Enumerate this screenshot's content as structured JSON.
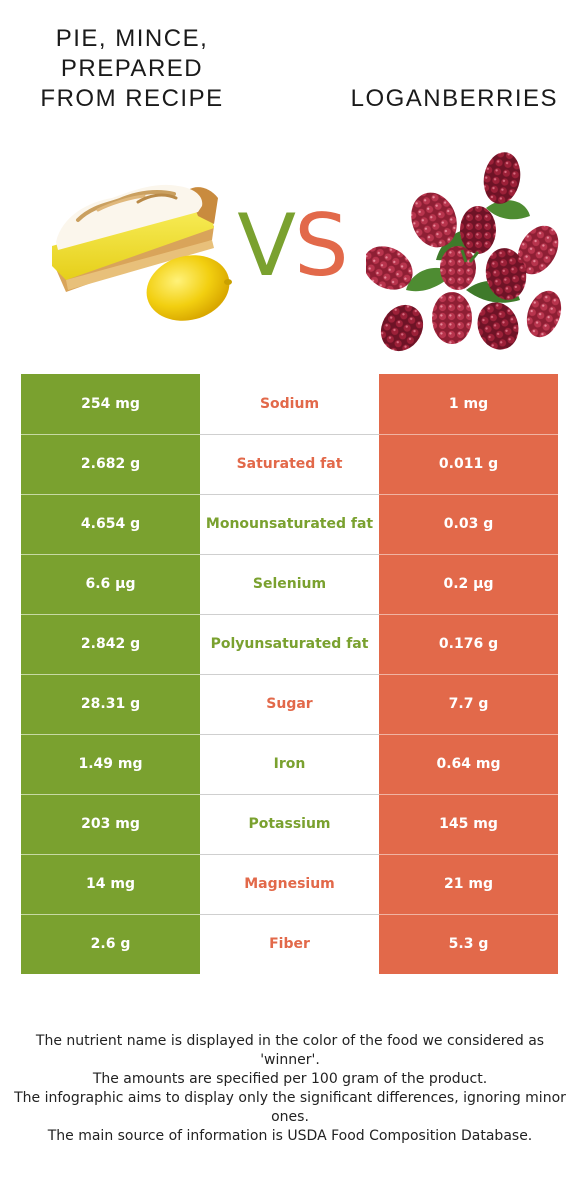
{
  "left_food": {
    "name": "Pie, mince, prepared from recipe",
    "color": "#7aa12f"
  },
  "right_food": {
    "name": "Loganberries",
    "color": "#e2694a"
  },
  "vs": {
    "v": "V",
    "s": "S"
  },
  "rows": [
    {
      "nutrient": "Sodium",
      "left": "254 mg",
      "right": "1 mg",
      "winner": "right"
    },
    {
      "nutrient": "Saturated fat",
      "left": "2.682 g",
      "right": "0.011 g",
      "winner": "right"
    },
    {
      "nutrient": "Monounsaturated fat",
      "left": "4.654 g",
      "right": "0.03 g",
      "winner": "left"
    },
    {
      "nutrient": "Selenium",
      "left": "6.6 µg",
      "right": "0.2 µg",
      "winner": "left"
    },
    {
      "nutrient": "Polyunsaturated fat",
      "left": "2.842 g",
      "right": "0.176 g",
      "winner": "left"
    },
    {
      "nutrient": "Sugar",
      "left": "28.31 g",
      "right": "7.7 g",
      "winner": "right"
    },
    {
      "nutrient": "Iron",
      "left": "1.49 mg",
      "right": "0.64 mg",
      "winner": "left"
    },
    {
      "nutrient": "Potassium",
      "left": "203 mg",
      "right": "145 mg",
      "winner": "left"
    },
    {
      "nutrient": "Magnesium",
      "left": "14 mg",
      "right": "21 mg",
      "winner": "right"
    },
    {
      "nutrient": "Fiber",
      "left": "2.6 g",
      "right": "5.3 g",
      "winner": "right"
    }
  ],
  "footer": [
    "The nutrient name is displayed in the color of the food we considered as 'winner'.",
    "The amounts are specified per 100 gram of the product.",
    "The infographic aims to display only the significant differences, ignoring minor ones.",
    "The main source of information is USDA Food Composition Database."
  ]
}
